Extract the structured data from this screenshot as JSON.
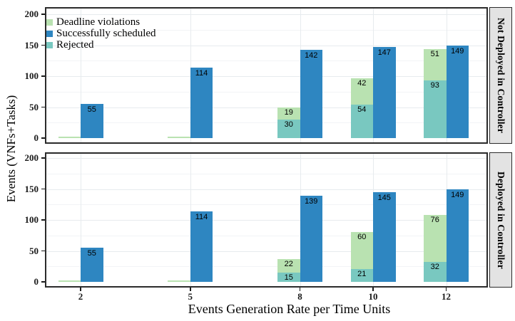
{
  "chart_data": {
    "type": "bar",
    "title": "",
    "xlabel": "Events Generation Rate per Time Units",
    "ylabel": "Events (VNFs+Tasks)",
    "x": [
      2,
      5,
      8,
      10,
      12
    ],
    "x_ticks": [
      "2",
      "5",
      "8",
      "10",
      "12"
    ],
    "y_ticks": [
      "0",
      "50",
      "100",
      "150",
      "200"
    ],
    "y_tick_values": [
      0,
      50,
      100,
      150,
      200
    ],
    "ylim": [
      0,
      212
    ],
    "grid": true,
    "legend_position": "top-left-inside-first-panel",
    "bar_arrangement": "per x: stacked bar (Rejected bottom + Deadline violations top) dodged left of Successfully scheduled bar",
    "colors": {
      "deadline_violations": "#b9e2b1",
      "successfully_scheduled": "#2e86c1",
      "rejected": "#79c8c0",
      "strip_background": "#e3e3e3",
      "panel_border": "#2b2b2b",
      "grid_major": "#e7ebee",
      "grid_minor": "#f2f4f6"
    },
    "panels": [
      {
        "label": "Not Deployed in Controller",
        "series": [
          {
            "name": "Deadline violations",
            "role": "deadline_violations",
            "values": [
              0,
              0,
              19,
              42,
              51
            ]
          },
          {
            "name": "Successfully scheduled",
            "role": "successfully_scheduled",
            "values": [
              55,
              114,
              142,
              147,
              149
            ]
          },
          {
            "name": "Rejected",
            "role": "rejected",
            "values": [
              0,
              0,
              30,
              54,
              93
            ]
          }
        ]
      },
      {
        "label": "Deployed in Controller",
        "series": [
          {
            "name": "Deadline violations",
            "role": "deadline_violations",
            "values": [
              0,
              0,
              22,
              60,
              76
            ]
          },
          {
            "name": "Successfully scheduled",
            "role": "successfully_scheduled",
            "values": [
              55,
              114,
              139,
              145,
              149
            ]
          },
          {
            "name": "Rejected",
            "role": "rejected",
            "values": [
              0,
              0,
              15,
              21,
              32
            ]
          }
        ]
      }
    ],
    "legend": {
      "items": [
        {
          "label": "Deadline violations",
          "color": "#b9e2b1"
        },
        {
          "label": "Successfully scheduled",
          "color": "#2e86c1"
        },
        {
          "label": "Rejected",
          "color": "#79c8c0"
        }
      ]
    }
  }
}
